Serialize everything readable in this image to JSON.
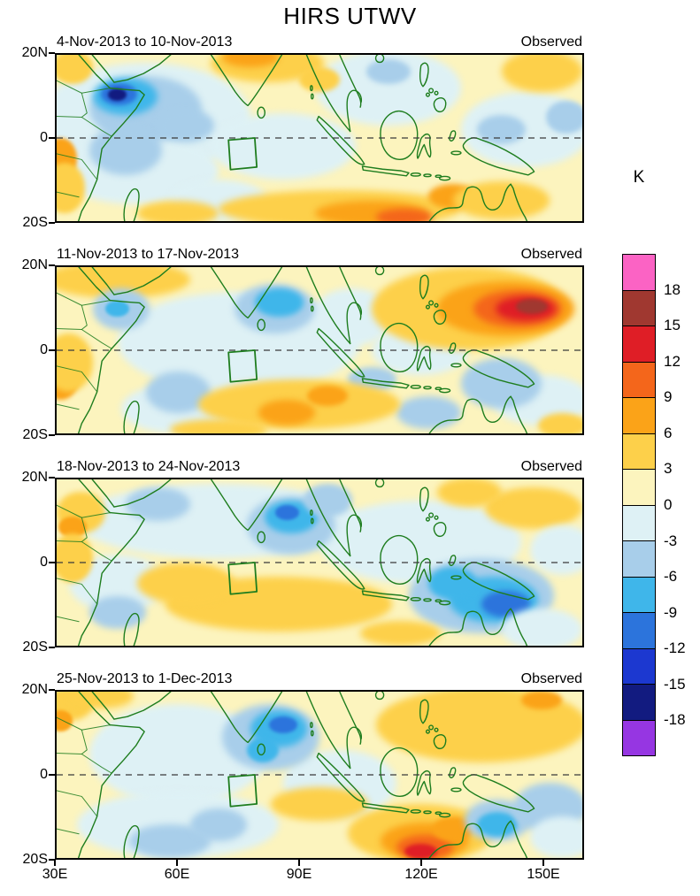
{
  "chart_data": {
    "type": "heatmap",
    "title": "HIRS UTWV",
    "units": "K",
    "lon_range": [
      30,
      160
    ],
    "lat_range": [
      -20,
      20
    ],
    "x_ticks": [
      "30E",
      "60E",
      "90E",
      "120E",
      "150E"
    ],
    "x_tick_lons": [
      30,
      60,
      90,
      120,
      150
    ],
    "y_ticks": [
      "20N",
      "0",
      "20S"
    ],
    "y_tick_lats": [
      20,
      0,
      -20
    ],
    "equator_line": true,
    "region_box": {
      "lon": [
        72,
        79
      ],
      "lat": [
        -7.5,
        0
      ]
    },
    "palette": {
      "pink": "#FB63C4",
      "brick": "#A03830",
      "red": "#DF1E26",
      "orangered": "#F4661B",
      "orange": "#FBA318",
      "gold": "#FDD04A",
      "paleyellow": "#FCF4BE",
      "palecyan": "#DEF1F5",
      "lightblue": "#A8CEEA",
      "cyan": "#3FB6EA",
      "blue": "#2C74DC",
      "darkblue": "#1C38D0",
      "navy": "#121B80",
      "purple": "#9636E2"
    },
    "colorbar": {
      "label": "K",
      "tick_values": [
        18,
        15,
        12,
        9,
        6,
        3,
        0,
        -3,
        -6,
        -9,
        -12,
        -15,
        -18
      ],
      "colors_top_to_bottom": [
        "pink",
        "brick",
        "red",
        "orangered",
        "orange",
        "gold",
        "paleyellow",
        "palecyan",
        "lightblue",
        "cyan",
        "blue",
        "darkblue",
        "navy",
        "purple"
      ]
    },
    "panels": [
      {
        "period": "4-Nov-2013 to 10-Nov-2013",
        "source": "Observed",
        "features": [
          [
            "palecyan",
            52,
            5,
            26,
            13
          ],
          [
            "palecyan",
            50,
            -8,
            20,
            8
          ],
          [
            "palecyan",
            86,
            -2,
            18,
            8
          ],
          [
            "palecyan",
            112,
            12,
            18,
            9
          ],
          [
            "palecyan",
            146,
            2,
            16,
            9
          ],
          [
            "palecyan",
            70,
            -15,
            12,
            5
          ],
          [
            "lightblue",
            52,
            7,
            14,
            8
          ],
          [
            "lightblue",
            47,
            -3,
            9,
            6
          ],
          [
            "lightblue",
            62,
            3,
            7,
            4
          ],
          [
            "cyan",
            47,
            10,
            8,
            4.5
          ],
          [
            "blue",
            45.5,
            10.5,
            4.5,
            2.6
          ],
          [
            "navy",
            45,
            10.5,
            2.4,
            1.5
          ],
          [
            "lightblue",
            112,
            16,
            5.5,
            3
          ],
          [
            "lightblue",
            140,
            2,
            6,
            3.5
          ],
          [
            "lightblue",
            156,
            5,
            5,
            4
          ],
          [
            "gold",
            82,
            18,
            14,
            4.5
          ],
          [
            "orange",
            78,
            19.5,
            7,
            2.5
          ],
          [
            "gold",
            95,
            14,
            5,
            3
          ],
          [
            "gold",
            150,
            16,
            10,
            5
          ],
          [
            "gold",
            100,
            -17,
            30,
            4.5
          ],
          [
            "orange",
            108,
            -18,
            14,
            3
          ],
          [
            "orangered",
            116,
            -19,
            7,
            2
          ],
          [
            "orange",
            128,
            -14,
            6,
            3
          ],
          [
            "gold",
            140,
            -15,
            12,
            4.5
          ],
          [
            "gold",
            60,
            -18,
            10,
            3
          ],
          [
            "orange",
            31,
            -5,
            4,
            5
          ],
          [
            "gold",
            32,
            -12,
            5,
            6
          ],
          [
            "gold",
            34,
            17,
            5,
            4
          ]
        ]
      },
      {
        "period": "11-Nov-2013 to 17-Nov-2013",
        "source": "Observed",
        "features": [
          [
            "gold",
            45,
            17,
            18,
            4.5
          ],
          [
            "palecyan",
            75,
            2,
            30,
            12
          ],
          [
            "palecyan",
            103,
            8,
            10,
            7
          ],
          [
            "palecyan",
            60,
            -14,
            14,
            6
          ],
          [
            "palecyan",
            120,
            0,
            12,
            6
          ],
          [
            "palecyan",
            150,
            -12,
            12,
            6
          ],
          [
            "lightblue",
            46,
            10,
            7,
            5
          ],
          [
            "cyan",
            45,
            10,
            3,
            2
          ],
          [
            "lightblue",
            84,
            10,
            10,
            6
          ],
          [
            "cyan",
            85,
            11.5,
            6,
            3.5
          ],
          [
            "lightblue",
            60,
            -10,
            8,
            5
          ],
          [
            "lightblue",
            108,
            -7,
            6,
            3
          ],
          [
            "lightblue",
            122,
            -15,
            8,
            4
          ],
          [
            "lightblue",
            140,
            -8,
            10,
            6
          ],
          [
            "gold",
            132,
            10,
            24,
            10
          ],
          [
            "orange",
            141,
            10,
            17,
            6.5
          ],
          [
            "orangered",
            144,
            10,
            11,
            4.5
          ],
          [
            "red",
            146,
            10,
            7.5,
            3
          ],
          [
            "brick",
            147.5,
            10.5,
            4,
            1.8
          ],
          [
            "gold",
            90,
            -13,
            25,
            6
          ],
          [
            "orange",
            87,
            -15,
            7,
            3
          ],
          [
            "orange",
            97,
            -11,
            5,
            2.5
          ],
          [
            "gold",
            70,
            -19,
            12,
            2.5
          ],
          [
            "orange",
            31,
            -7,
            4.5,
            5
          ],
          [
            "gold",
            33,
            -3,
            6,
            7
          ],
          [
            "gold",
            155,
            -18,
            6,
            3
          ]
        ]
      },
      {
        "period": "18-Nov-2013 to 24-Nov-2013",
        "source": "Observed",
        "features": [
          [
            "palecyan",
            70,
            10,
            35,
            9
          ],
          [
            "palecyan",
            120,
            5,
            25,
            10
          ],
          [
            "palecyan",
            45,
            -5,
            12,
            7
          ],
          [
            "lightblue",
            55,
            14,
            8,
            4
          ],
          [
            "lightblue",
            45,
            -12,
            7,
            4
          ],
          [
            "lightblue",
            88,
            9,
            11,
            7
          ],
          [
            "cyan",
            88,
            11,
            6.5,
            4
          ],
          [
            "blue",
            87,
            12,
            3,
            1.8
          ],
          [
            "lightblue",
            97,
            15,
            6,
            4
          ],
          [
            "gold",
            36,
            12,
            6,
            5
          ],
          [
            "orange",
            34,
            8.5,
            3.5,
            2.5
          ],
          [
            "gold",
            34,
            1,
            5,
            6
          ],
          [
            "gold",
            85,
            -10,
            28,
            6.5
          ],
          [
            "gold",
            62,
            -5,
            12,
            5
          ],
          [
            "lightblue",
            135,
            -8,
            18,
            9
          ],
          [
            "cyan",
            138,
            -9,
            11,
            5.5
          ],
          [
            "blue",
            141,
            -10,
            6,
            3.2
          ],
          [
            "cyan",
            128,
            -5,
            6,
            4
          ],
          [
            "palecyan",
            150,
            -16,
            10,
            5
          ],
          [
            "gold",
            148,
            13,
            12,
            5
          ],
          [
            "gold",
            132,
            17,
            8,
            3.5
          ],
          [
            "gold",
            115,
            -17,
            10,
            3
          ],
          [
            "palecyan",
            155,
            3,
            8,
            6
          ]
        ]
      },
      {
        "period": "25-Nov-2013 to 1-Dec-2013",
        "source": "Observed",
        "features": [
          [
            "gold",
            33,
            17,
            6,
            4
          ],
          [
            "gold",
            41,
            19,
            8,
            3
          ],
          [
            "orange",
            31,
            13,
            3,
            2.5
          ],
          [
            "palecyan",
            60,
            5,
            22,
            12
          ],
          [
            "palecyan",
            60,
            -12,
            25,
            8
          ],
          [
            "lightblue",
            58,
            -16,
            10,
            4
          ],
          [
            "lightblue",
            70,
            -12,
            7,
            4
          ],
          [
            "palecyan",
            100,
            -2,
            14,
            8
          ],
          [
            "lightblue",
            83,
            9,
            12,
            8
          ],
          [
            "cyan",
            85,
            11,
            7,
            4.5
          ],
          [
            "blue",
            86,
            12,
            3.5,
            2
          ],
          [
            "cyan",
            81,
            6,
            4,
            3
          ],
          [
            "gold",
            135,
            12,
            26,
            9
          ],
          [
            "orange",
            150,
            18,
            5,
            2.2
          ],
          [
            "gold",
            95,
            -7,
            12,
            4
          ],
          [
            "gold",
            120,
            -14,
            18,
            7
          ],
          [
            "orange",
            121,
            -16,
            11,
            4.5
          ],
          [
            "orangered",
            121,
            -17.5,
            7,
            3
          ],
          [
            "red",
            120,
            -18.5,
            4,
            1.8
          ],
          [
            "orange",
            128,
            -13,
            5,
            3
          ],
          [
            "lightblue",
            139,
            -11,
            8,
            5
          ],
          [
            "cyan",
            139,
            -12,
            5,
            3
          ],
          [
            "lightblue",
            152,
            -8,
            9,
            6
          ],
          [
            "palecyan",
            155,
            -15,
            8,
            5
          ]
        ]
      }
    ]
  }
}
